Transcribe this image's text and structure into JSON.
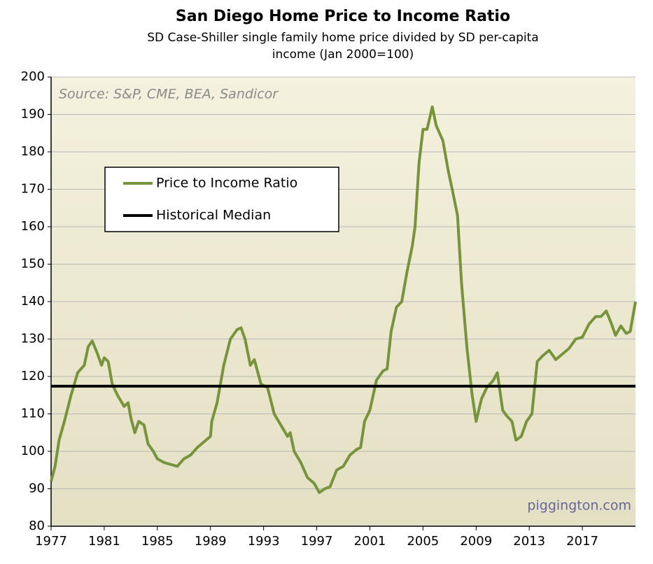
{
  "chart_data": {
    "type": "line",
    "title": "San Diego Home Price to Income Ratio",
    "subtitle": [
      "SD Case-Shiller single family home price divided by SD per-capita",
      "income (Jan 2000=100)"
    ],
    "annotations": [
      "Source: S&P, CME, BEA, Sandicor",
      "piggington.com"
    ],
    "xlim": [
      1977,
      2021
    ],
    "xticks": [
      1977,
      1981,
      1985,
      1989,
      1993,
      1997,
      2001,
      2005,
      2009,
      2013,
      2017
    ],
    "ylim": [
      80,
      200
    ],
    "yticks": [
      80,
      90,
      100,
      110,
      120,
      130,
      140,
      150,
      160,
      170,
      180,
      190,
      200
    ],
    "grid": true,
    "legend": "upper left",
    "series": [
      {
        "name": "Price to Income Ratio",
        "color": "#77933c",
        "x": [
          1977.0,
          1977.3,
          1977.6,
          1978.0,
          1978.5,
          1979.0,
          1979.5,
          1979.8,
          1980.1,
          1980.5,
          1980.8,
          1981.0,
          1981.3,
          1981.6,
          1982.0,
          1982.5,
          1982.8,
          1983.0,
          1983.3,
          1983.6,
          1984.0,
          1984.3,
          1984.7,
          1985.0,
          1985.5,
          1986.0,
          1986.5,
          1987.0,
          1987.5,
          1988.0,
          1988.5,
          1989.0,
          1989.1,
          1989.5,
          1990.0,
          1990.5,
          1991.0,
          1991.3,
          1991.6,
          1992.0,
          1992.3,
          1992.8,
          1993.3,
          1993.8,
          1994.3,
          1994.8,
          1995.0,
          1995.3,
          1995.8,
          1996.3,
          1996.8,
          1997.2,
          1997.6,
          1998.0,
          1998.5,
          1999.0,
          1999.5,
          2000.0,
          2000.3,
          2000.6,
          2001.0,
          2001.5,
          2002.0,
          2002.3,
          2002.6,
          2003.0,
          2003.4,
          2003.8,
          2004.2,
          2004.4,
          2004.7,
          2005.0,
          2005.3,
          2005.5,
          2005.7,
          2006.0,
          2006.5,
          2006.9,
          2007.2,
          2007.6,
          2007.9,
          2008.3,
          2008.7,
          2009.0,
          2009.4,
          2009.8,
          2010.3,
          2010.6,
          2011.0,
          2011.3,
          2011.7,
          2012.0,
          2012.4,
          2012.8,
          2013.2,
          2013.6,
          2014.0,
          2014.5,
          2015.0,
          2015.5,
          2016.0,
          2016.5,
          2017.0,
          2017.5,
          2018.0,
          2018.4,
          2018.8,
          2019.2,
          2019.5,
          2019.9,
          2020.3,
          2020.6,
          2021.0
        ],
        "values": [
          92,
          96,
          103,
          108,
          115,
          121,
          123,
          128,
          129.5,
          126,
          123,
          125,
          124,
          118,
          115,
          112,
          113,
          109,
          105,
          108,
          107,
          102,
          100,
          98,
          97,
          96.5,
          96,
          98,
          99,
          101,
          102.5,
          104,
          108,
          113,
          123,
          130,
          132.5,
          133,
          130,
          123,
          124.5,
          118,
          117,
          110,
          107,
          104,
          105,
          100,
          97,
          93,
          91.5,
          89,
          90,
          90.5,
          95,
          96,
          99,
          100.5,
          101,
          108,
          111,
          119,
          121.5,
          122,
          132,
          138.5,
          140,
          148,
          155,
          160,
          177,
          186,
          186,
          189,
          192,
          187,
          183,
          175,
          170,
          163,
          145,
          128,
          115,
          108,
          114,
          117,
          119,
          121,
          111,
          109.5,
          108,
          103,
          104,
          108,
          110,
          124,
          125.5,
          127,
          124.5,
          126,
          127.5,
          130,
          130.5,
          134,
          136,
          136,
          137.5,
          134,
          131,
          133.5,
          131.5,
          132,
          140
        ]
      },
      {
        "name": "Historical Median",
        "color": "#000000",
        "x": [
          1977,
          2021
        ],
        "values": [
          117.4,
          117.4
        ]
      }
    ]
  }
}
